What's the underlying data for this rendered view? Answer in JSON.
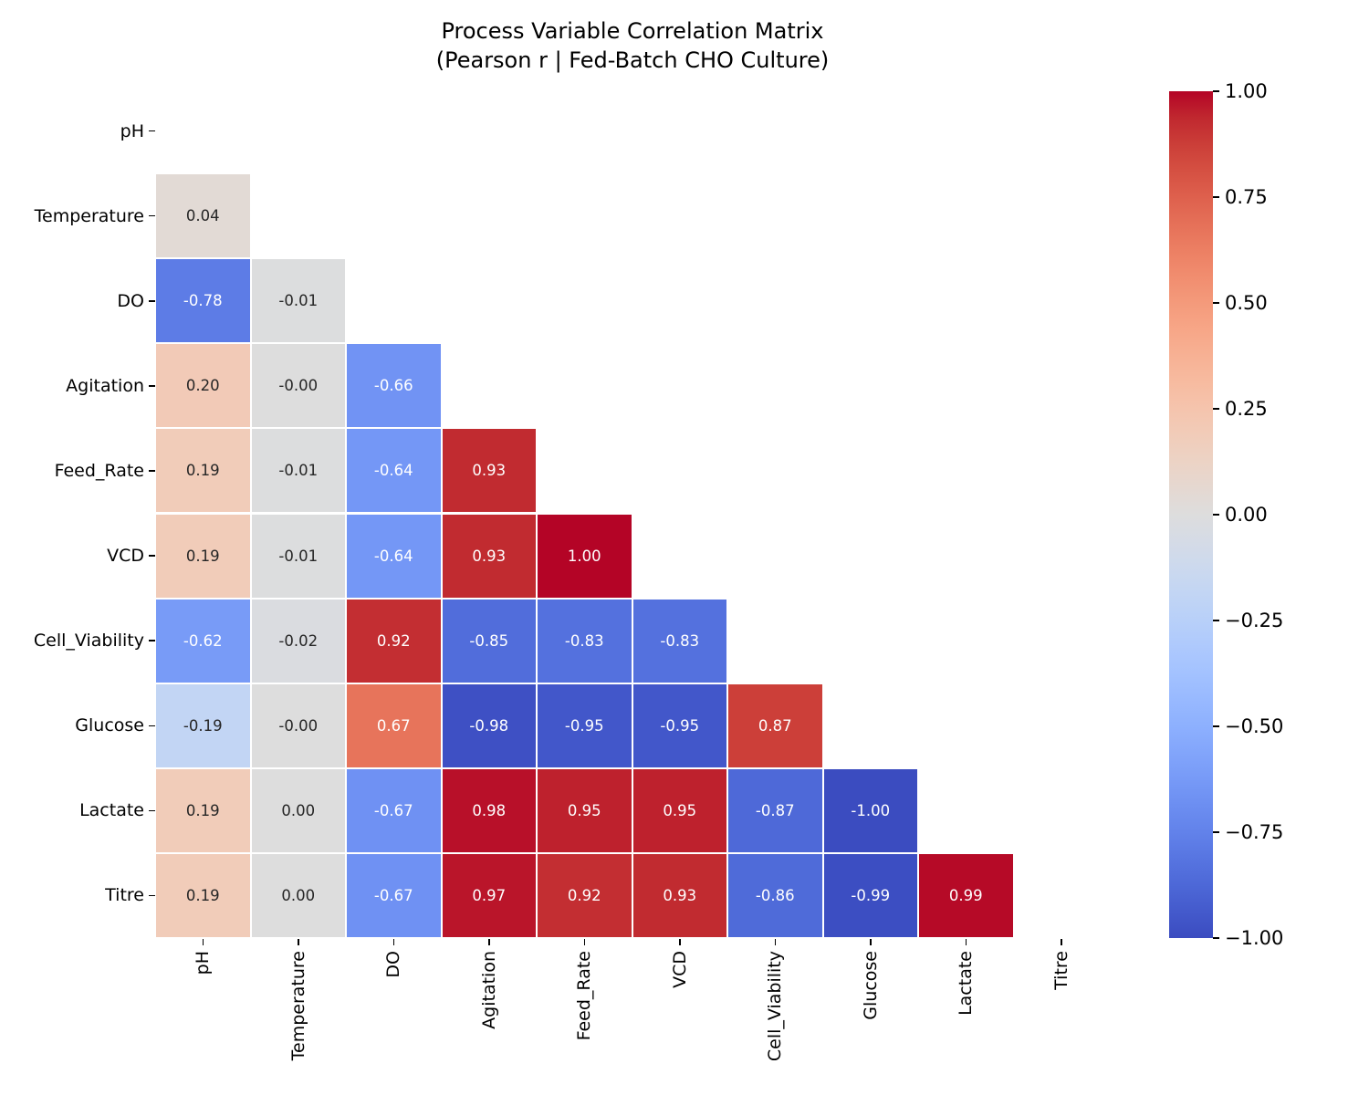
{
  "title": {
    "line1": "Process Variable Correlation Matrix",
    "line2": "(Pearson r | Fed-Batch CHO Culture)"
  },
  "chart_data": {
    "type": "heatmap",
    "subtype": "correlation-matrix-lower-triangle",
    "title": "Process Variable Correlation Matrix (Pearson r | Fed-Batch CHO Culture)",
    "variables": [
      "pH",
      "Temperature",
      "DO",
      "Agitation",
      "Feed_Rate",
      "VCD",
      "Cell_Viability",
      "Glucose",
      "Lactate",
      "Titre"
    ],
    "mask": "diagonal-and-upper-triangle-hidden",
    "rows": [
      {
        "name": "pH",
        "values": []
      },
      {
        "name": "Temperature",
        "values": [
          "0.04"
        ]
      },
      {
        "name": "DO",
        "values": [
          "-0.78",
          "-0.01"
        ]
      },
      {
        "name": "Agitation",
        "values": [
          "0.20",
          "-0.00",
          "-0.66"
        ]
      },
      {
        "name": "Feed_Rate",
        "values": [
          "0.19",
          "-0.01",
          "-0.64",
          "0.93"
        ]
      },
      {
        "name": "VCD",
        "values": [
          "0.19",
          "-0.01",
          "-0.64",
          "0.93",
          "1.00"
        ]
      },
      {
        "name": "Cell_Viability",
        "values": [
          "-0.62",
          "-0.02",
          "0.92",
          "-0.85",
          "-0.83",
          "-0.83"
        ]
      },
      {
        "name": "Glucose",
        "values": [
          "-0.19",
          "-0.00",
          "0.67",
          "-0.98",
          "-0.95",
          "-0.95",
          "0.87"
        ]
      },
      {
        "name": "Lactate",
        "values": [
          "0.19",
          "0.00",
          "-0.67",
          "0.98",
          "0.95",
          "0.95",
          "-0.87",
          "-1.00"
        ]
      },
      {
        "name": "Titre",
        "values": [
          "0.19",
          "0.00",
          "-0.67",
          "0.97",
          "0.92",
          "0.93",
          "-0.86",
          "-0.99",
          "0.99"
        ]
      }
    ],
    "vmin": -1,
    "vmax": 1,
    "colormap": {
      "name": "coolwarm",
      "anchors": [
        [
          59,
          76,
          192
        ],
        [
          68,
          90,
          204
        ],
        [
          77,
          104,
          215
        ],
        [
          87,
          117,
          225
        ],
        [
          98,
          130,
          234
        ],
        [
          108,
          142,
          241
        ],
        [
          119,
          154,
          247
        ],
        [
          130,
          165,
          251
        ],
        [
          141,
          176,
          254
        ],
        [
          152,
          185,
          255
        ],
        [
          163,
          194,
          255
        ],
        [
          174,
          201,
          253
        ],
        [
          184,
          208,
          249
        ],
        [
          194,
          213,
          244
        ],
        [
          204,
          217,
          238
        ],
        [
          213,
          219,
          230
        ],
        [
          221,
          221,
          221
        ],
        [
          229,
          216,
          209
        ],
        [
          236,
          211,
          197
        ],
        [
          241,
          204,
          185
        ],
        [
          245,
          196,
          173
        ],
        [
          247,
          187,
          160
        ],
        [
          247,
          177,
          148
        ],
        [
          247,
          166,
          135
        ],
        [
          244,
          154,
          123
        ],
        [
          241,
          141,
          111
        ],
        [
          236,
          127,
          99
        ],
        [
          229,
          112,
          88
        ],
        [
          222,
          96,
          77
        ],
        [
          213,
          80,
          66
        ],
        [
          203,
          62,
          56
        ],
        [
          192,
          40,
          47
        ],
        [
          180,
          4,
          38
        ]
      ]
    },
    "colorbar_ticks": [
      "1.00",
      "0.75",
      "0.50",
      "0.25",
      "0.00",
      "−0.25",
      "−0.50",
      "−0.75",
      "−1.00"
    ],
    "annotation_colors": {
      "dark": "#262626",
      "light": "#ffffff"
    },
    "grid_line_color": "#ffffff",
    "background": "#ffffff"
  }
}
